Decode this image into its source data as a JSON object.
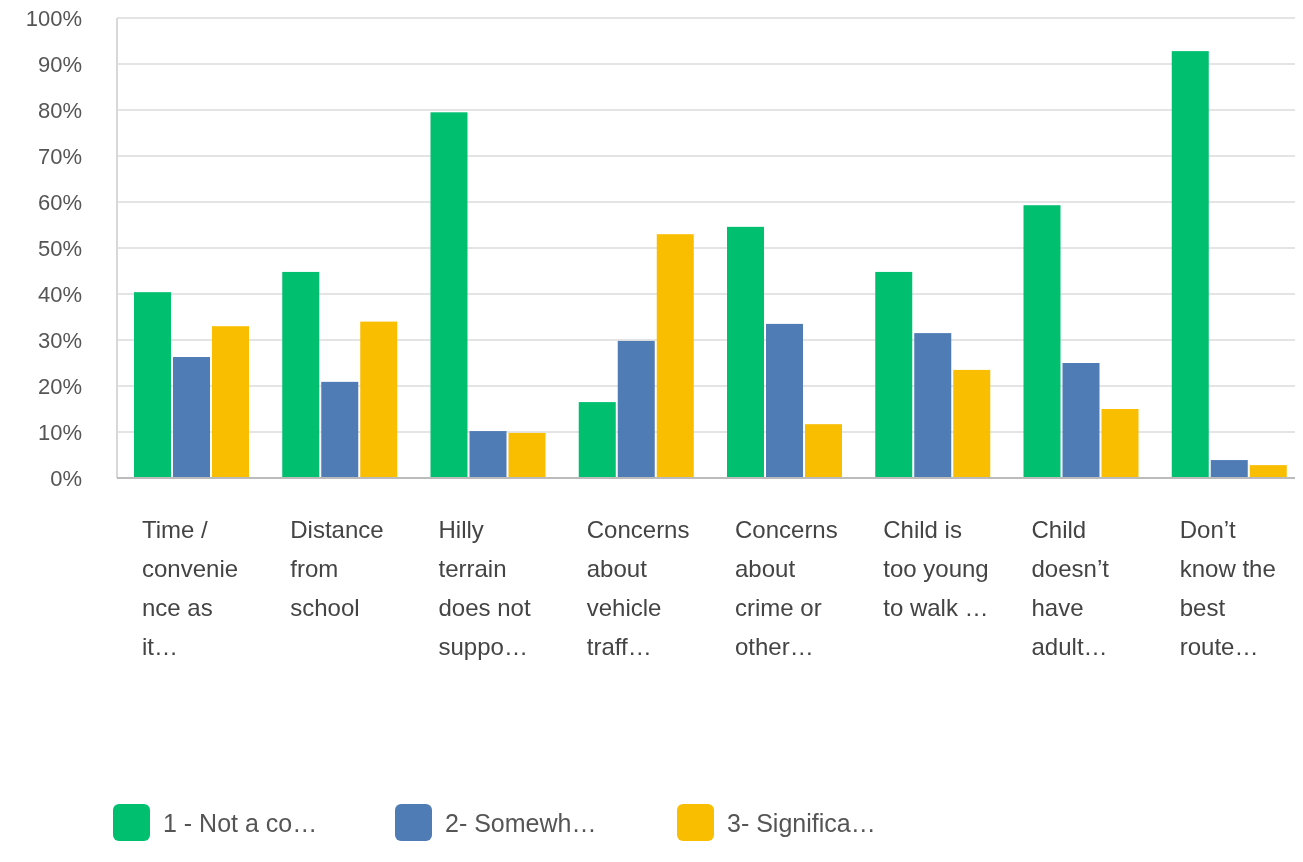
{
  "chart_data": {
    "type": "bar",
    "categories": [
      "Time / convenience as it…",
      "Distance from school",
      "Hilly terrain does not suppo…",
      "Concerns about vehicle traff…",
      "Concerns about crime or other…",
      "Child is too young to walk …",
      "Child doesn’t have adult…",
      "Don’t know the best route…"
    ],
    "series": [
      {
        "name": "1 - Not a co…",
        "color": "#00bf6f",
        "values": [
          40.4,
          44.8,
          79.5,
          16.5,
          54.6,
          44.8,
          59.3,
          92.8
        ]
      },
      {
        "name": "2- Somewh…",
        "color": "#507cb6",
        "values": [
          26.3,
          20.9,
          10.2,
          29.8,
          33.5,
          31.5,
          25,
          3.9
        ]
      },
      {
        "name": "3- Significa…",
        "color": "#f9be00",
        "values": [
          33,
          34,
          9.8,
          53,
          11.7,
          23.5,
          15,
          2.8
        ]
      }
    ],
    "ylim": [
      0,
      100
    ],
    "yticks": [
      {
        "value": 0,
        "label": "0%"
      },
      {
        "value": 10,
        "label": "10%"
      },
      {
        "value": 20,
        "label": "20%"
      },
      {
        "value": 30,
        "label": "30%"
      },
      {
        "value": 40,
        "label": "40%"
      },
      {
        "value": 50,
        "label": "50%"
      },
      {
        "value": 60,
        "label": "60%"
      },
      {
        "value": 70,
        "label": "70%"
      },
      {
        "value": 80,
        "label": "80%"
      },
      {
        "value": 90,
        "label": "90%"
      },
      {
        "value": 100,
        "label": "100%"
      }
    ],
    "grid": "y",
    "legend": "bottom left"
  }
}
